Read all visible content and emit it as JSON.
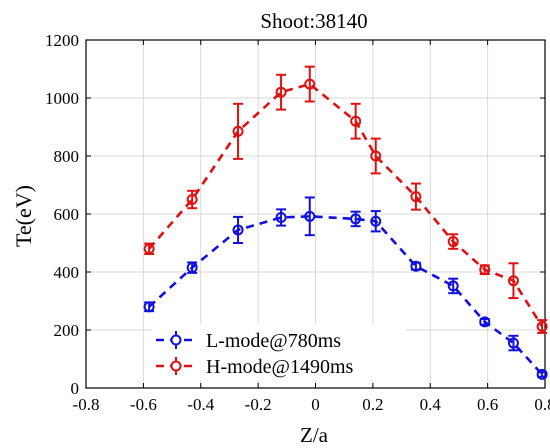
{
  "chart_data": {
    "type": "line",
    "title": "Shoot:38140",
    "xlabel": "Z/a",
    "ylabel": "Te(eV)",
    "xlim": [
      -0.8,
      0.8
    ],
    "ylim": [
      0,
      1200
    ],
    "xticks": [
      -0.8,
      -0.6,
      -0.4,
      -0.2,
      0,
      0.2,
      0.4,
      0.6,
      0.8
    ],
    "xtick_labels": [
      "-0.8",
      "-0.6",
      "-0.4",
      "-0.2",
      "0",
      "0.2",
      "0.4",
      "0.6",
      "0.8"
    ],
    "yticks": [
      0,
      200,
      400,
      600,
      800,
      1000,
      1200
    ],
    "ytick_labels": [
      "0",
      "200",
      "400",
      "600",
      "800",
      "1000",
      "1200"
    ],
    "grid": true,
    "legend_position": "bottom-left",
    "series": [
      {
        "name": "L-mode@780ms",
        "color": "#1010e0",
        "x": [
          -0.58,
          -0.43,
          -0.27,
          -0.12,
          -0.02,
          0.14,
          0.21,
          0.35,
          0.48,
          0.59,
          0.69,
          0.79
        ],
        "y": [
          280,
          415,
          545,
          588,
          592,
          583,
          575,
          420,
          352,
          228,
          155,
          47
        ],
        "err": [
          15,
          18,
          45,
          28,
          65,
          25,
          35,
          12,
          25,
          10,
          25,
          8
        ]
      },
      {
        "name": "H-mode@1490ms",
        "color": "#e01010",
        "x": [
          -0.58,
          -0.43,
          -0.27,
          -0.12,
          -0.02,
          0.14,
          0.21,
          0.35,
          0.48,
          0.59,
          0.69,
          0.79
        ],
        "y": [
          480,
          650,
          885,
          1020,
          1048,
          920,
          800,
          660,
          505,
          408,
          370,
          212
        ],
        "err": [
          18,
          30,
          95,
          60,
          60,
          60,
          60,
          45,
          25,
          15,
          60,
          22
        ]
      }
    ]
  }
}
